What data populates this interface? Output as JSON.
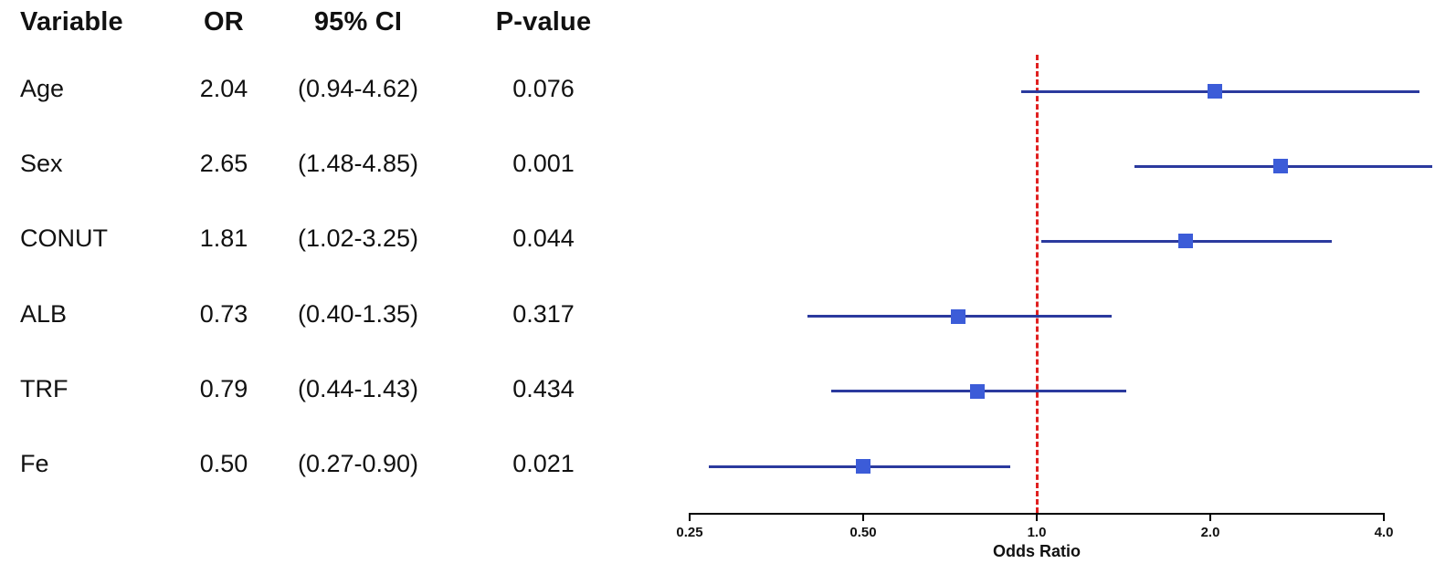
{
  "table": {
    "headers": {
      "variable": "Variable",
      "or": "OR",
      "ci": "95% CI",
      "p": "P-value"
    },
    "rows": [
      {
        "variable": "Age",
        "or": "2.04",
        "ci": "(0.94-4.62)",
        "p": "0.076"
      },
      {
        "variable": "Sex",
        "or": "2.65",
        "ci": "(1.48-4.85)",
        "p": "0.001"
      },
      {
        "variable": "CONUT",
        "or": "1.81",
        "ci": "(1.02-3.25)",
        "p": "0.044"
      },
      {
        "variable": "ALB",
        "or": "0.73",
        "ci": "(0.40-1.35)",
        "p": "0.317"
      },
      {
        "variable": "TRF",
        "or": "0.79",
        "ci": "(0.44-1.43)",
        "p": "0.434"
      },
      {
        "variable": "Fe",
        "or": "0.50",
        "ci": "(0.27-0.90)",
        "p": "0.021"
      }
    ]
  },
  "chart_data": {
    "type": "scatter",
    "subtype": "forest-plot",
    "xlabel": "Odds Ratio",
    "x_scale": "log2",
    "x_range": [
      0.25,
      4.0
    ],
    "x_ticks": [
      0.25,
      0.5,
      1.0,
      2.0,
      4.0
    ],
    "x_tick_labels": [
      "0.25",
      "0.50",
      "1.0",
      "2.0",
      "4.0"
    ],
    "reference_line": 1.0,
    "grid": false,
    "legend": "none",
    "series": [
      {
        "label": "Age",
        "or": 2.04,
        "ci_low": 0.94,
        "ci_high": 4.62,
        "p": 0.076
      },
      {
        "label": "Sex",
        "or": 2.65,
        "ci_low": 1.48,
        "ci_high": 4.85,
        "p": 0.001
      },
      {
        "label": "CONUT",
        "or": 1.81,
        "ci_low": 1.02,
        "ci_high": 3.25,
        "p": 0.044
      },
      {
        "label": "ALB",
        "or": 0.73,
        "ci_low": 0.4,
        "ci_high": 1.35,
        "p": 0.317
      },
      {
        "label": "TRF",
        "or": 0.79,
        "ci_low": 0.44,
        "ci_high": 1.43,
        "p": 0.434
      },
      {
        "label": "Fe",
        "or": 0.5,
        "ci_low": 0.27,
        "ci_high": 0.9,
        "p": 0.021
      }
    ],
    "colors": {
      "marker": "#3c5cd8",
      "ci_line": "#2b3a9e",
      "reference": "#e02020",
      "axis": "#000000",
      "text": "#111111",
      "background": "#ffffff"
    }
  }
}
